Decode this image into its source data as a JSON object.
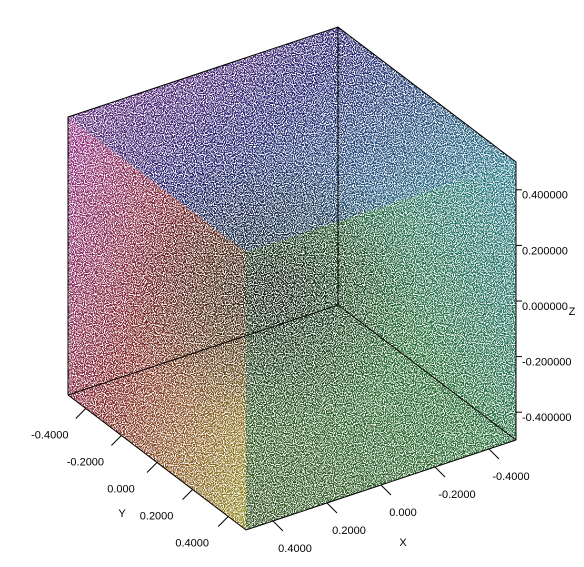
{
  "chart_data": {
    "type": "scatter3d",
    "xlabel": "X",
    "ylabel": "Y",
    "zlabel": "Z",
    "xlim": [
      -0.5,
      0.5
    ],
    "ylim": [
      -0.5,
      0.5
    ],
    "zlim": [
      -0.5,
      0.5
    ],
    "xticks": [
      {
        "value": 0.4,
        "label": "0.4000"
      },
      {
        "value": 0.2,
        "label": "0.2000"
      },
      {
        "value": 0,
        "label": "0.000"
      },
      {
        "value": -0.2,
        "label": "-0.2000"
      },
      {
        "value": -0.4,
        "label": "-0.4000"
      }
    ],
    "yticks": [
      {
        "value": -0.4,
        "label": "-0.4000"
      },
      {
        "value": -0.2,
        "label": "-0.2000"
      },
      {
        "value": 0,
        "label": "0.000"
      },
      {
        "value": 0.2,
        "label": "0.2000"
      },
      {
        "value": 0.4,
        "label": "0.4000"
      }
    ],
    "zticks": [
      {
        "value": 0.4,
        "label": "0.400000"
      },
      {
        "value": 0.2,
        "label": "0.200000"
      },
      {
        "value": 0,
        "label": "0.000000"
      },
      {
        "value": -0.2,
        "label": "-0.200000"
      },
      {
        "value": -0.4,
        "label": "-0.400000"
      }
    ]
  }
}
